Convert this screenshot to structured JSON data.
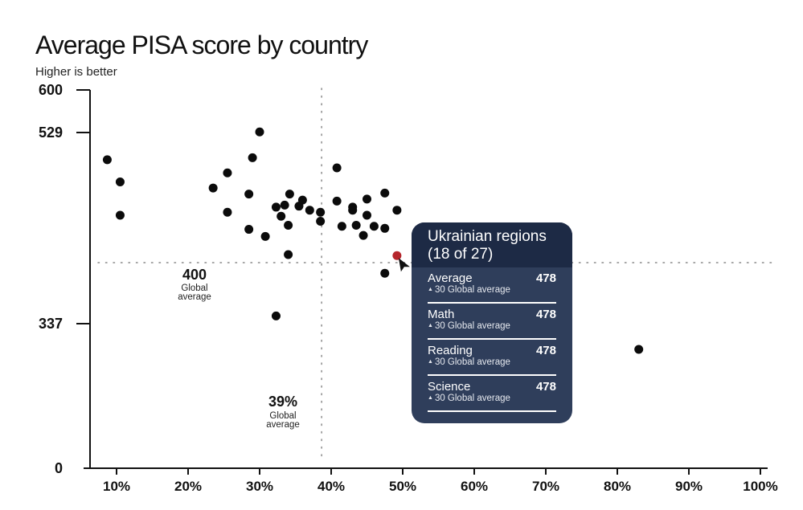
{
  "chart_data": {
    "type": "scatter",
    "title": "Average PISA score by country",
    "subtitle": "Higher is better",
    "x_ticks": [
      "10%",
      "20%",
      "30%",
      "40%",
      "50%",
      "60%",
      "70%",
      "80%",
      "90%",
      "100%"
    ],
    "x_tick_values": [
      10,
      20,
      30,
      40,
      50,
      60,
      70,
      80,
      90,
      100
    ],
    "y_ticks": [
      "0",
      "337",
      "529",
      "600"
    ],
    "y_tick_values": [
      0,
      337,
      529,
      600
    ],
    "reference_lines": {
      "y": {
        "value": "400",
        "label": "Global average",
        "numeric": 400
      },
      "x": {
        "value": "39%",
        "label": "Global average",
        "numeric": 39
      }
    },
    "points": [
      {
        "x": 8.7,
        "y": 502
      },
      {
        "x": 10.5,
        "y": 480
      },
      {
        "x": 10.5,
        "y": 447
      },
      {
        "x": 23.5,
        "y": 474
      },
      {
        "x": 25.5,
        "y": 489
      },
      {
        "x": 25.5,
        "y": 450
      },
      {
        "x": 28.5,
        "y": 468
      },
      {
        "x": 28.5,
        "y": 433
      },
      {
        "x": 29,
        "y": 504
      },
      {
        "x": 30,
        "y": 530
      },
      {
        "x": 30.8,
        "y": 426
      },
      {
        "x": 32.3,
        "y": 455
      },
      {
        "x": 32.3,
        "y": 345
      },
      {
        "x": 33,
        "y": 446
      },
      {
        "x": 33.5,
        "y": 457
      },
      {
        "x": 34,
        "y": 437
      },
      {
        "x": 34,
        "y": 408
      },
      {
        "x": 34.2,
        "y": 468
      },
      {
        "x": 35.5,
        "y": 456
      },
      {
        "x": 36,
        "y": 462
      },
      {
        "x": 37,
        "y": 452
      },
      {
        "x": 38.5,
        "y": 450
      },
      {
        "x": 38.5,
        "y": 441
      },
      {
        "x": 40.8,
        "y": 494
      },
      {
        "x": 40.8,
        "y": 461
      },
      {
        "x": 41.5,
        "y": 436
      },
      {
        "x": 43,
        "y": 455
      },
      {
        "x": 43,
        "y": 452
      },
      {
        "x": 43.5,
        "y": 437
      },
      {
        "x": 44.5,
        "y": 427
      },
      {
        "x": 45,
        "y": 463
      },
      {
        "x": 45,
        "y": 447
      },
      {
        "x": 46,
        "y": 436
      },
      {
        "x": 47.5,
        "y": 469
      },
      {
        "x": 47.5,
        "y": 434
      },
      {
        "x": 47.5,
        "y": 389
      },
      {
        "x": 49.2,
        "y": 452
      },
      {
        "x": 83,
        "y": 277
      },
      {
        "x": 49.2,
        "y": 407,
        "highlight": true
      }
    ],
    "highlight_color": "#b5262c",
    "point_color": "#0b0b0b",
    "tooltip": {
      "title": "Ukrainian regions (18 of 27)",
      "rows": [
        {
          "label": "Average",
          "value": "478",
          "sub": "30 Global average"
        },
        {
          "label": "Math",
          "value": "478",
          "sub": "30 Global average"
        },
        {
          "label": "Reading",
          "value": "478",
          "sub": "30 Global average"
        },
        {
          "label": "Science",
          "value": "478",
          "sub": "30 Global average"
        }
      ],
      "background": "#2f3e5b",
      "header_background": "#1d2a45"
    }
  }
}
